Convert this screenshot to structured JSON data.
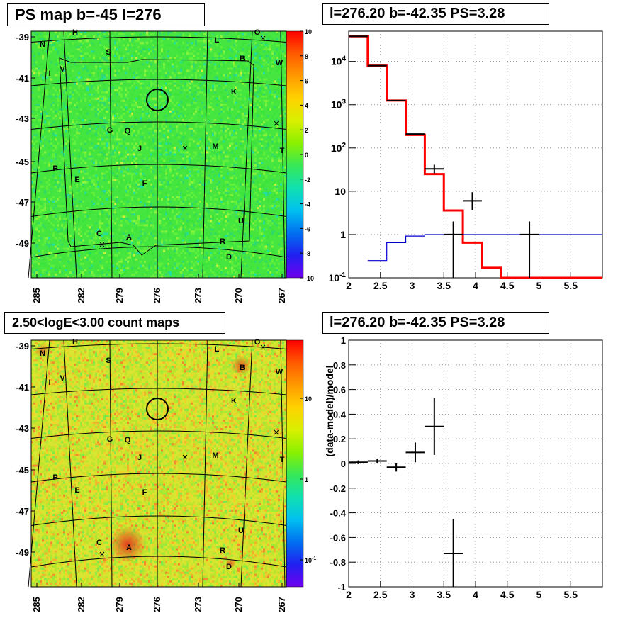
{
  "titles": {
    "map_top": "PS map b=-45 l=276",
    "spec_top": "l=276.20 b=-42.35 PS=3.28",
    "map_bottom": "2.50<logE<3.00 count maps",
    "spec_bottom": "l=276.20 b=-42.35 PS=3.28"
  },
  "chart_data": [
    {
      "type": "heatmap",
      "title": "PS map b=-45 l=276",
      "x_ticks": [
        "285",
        "282",
        "279",
        "276",
        "273",
        "270",
        "267"
      ],
      "y_ticks": [
        "-39",
        "-41",
        "-43",
        "-45",
        "-47",
        "-49"
      ],
      "colorbar": {
        "ticks": [
          "10",
          "8",
          "6",
          "4",
          "2",
          "0",
          "-2",
          "-4",
          "-6",
          "-8",
          "-10"
        ],
        "range": [
          -10,
          10
        ],
        "scale": "linear"
      },
      "sources": [
        {
          "label": "N",
          "l": 284.8,
          "b": -39.2
        },
        {
          "label": "H",
          "l": 283.0,
          "b": -38.9
        },
        {
          "label": "S",
          "l": 280.8,
          "b": -39.7
        },
        {
          "label": "L",
          "l": 271.0,
          "b": -39.0
        },
        {
          "label": "O",
          "l": 269.3,
          "b": -38.9
        },
        {
          "label": "B",
          "l": 270.0,
          "b": -39.9
        },
        {
          "label": "W",
          "l": 268.0,
          "b": -40.1
        },
        {
          "label": "I",
          "l": 284.0,
          "b": -40.6
        },
        {
          "label": "V",
          "l": 283.3,
          "b": -40.5
        },
        {
          "label": "K",
          "l": 270.3,
          "b": -41.5
        },
        {
          "label": "G",
          "l": 280.8,
          "b": -43.5
        },
        {
          "label": "Q",
          "l": 279.8,
          "b": -43.5
        },
        {
          "label": "J",
          "l": 278.2,
          "b": -44.3
        },
        {
          "label": "M",
          "l": 271.7,
          "b": -44.2
        },
        {
          "label": "T",
          "l": 267.3,
          "b": -44.4
        },
        {
          "label": "P",
          "l": 284.2,
          "b": -45.2
        },
        {
          "label": "E",
          "l": 282.5,
          "b": -45.8
        },
        {
          "label": "F",
          "l": 277.9,
          "b": -46.0
        },
        {
          "label": "U",
          "l": 269.8,
          "b": -48.0
        },
        {
          "label": "C",
          "l": 281.5,
          "b": -48.6
        },
        {
          "label": "A",
          "l": 279.6,
          "b": -48.8
        },
        {
          "label": "R",
          "l": 271.4,
          "b": -49.0
        },
        {
          "label": "D",
          "l": 270.9,
          "b": -49.6
        }
      ],
      "roi_circle": {
        "l": 276.2,
        "b": -42.35
      }
    },
    {
      "type": "line",
      "title": "l=276.20 b=-42.35 PS=3.28",
      "x_ticks": [
        "2",
        "2.5",
        "3",
        "3.5",
        "4",
        "4.5",
        "5",
        "5.5"
      ],
      "y_ticks": [
        "10^-1",
        "1",
        "10",
        "10^2",
        "10^3",
        "10^4"
      ],
      "xlim": [
        2,
        6
      ],
      "ylim": [
        0.1,
        50000
      ],
      "yscale": "log",
      "grid": true,
      "series": [
        {
          "color": "#ff0000",
          "steps": [
            [
              2.0,
              2.3,
              38000
            ],
            [
              2.3,
              2.6,
              8000
            ],
            [
              2.6,
              2.9,
              1250
            ],
            [
              2.9,
              3.2,
              200
            ],
            [
              3.2,
              3.5,
              25
            ],
            [
              3.5,
              3.8,
              3.6
            ],
            [
              3.8,
              4.1,
              0.65
            ],
            [
              4.1,
              4.4,
              0.17
            ],
            [
              4.4,
              6.0,
              0.1
            ]
          ]
        },
        {
          "color": "#0000cc",
          "steps": [
            [
              2.3,
              2.6,
              0.25
            ],
            [
              2.6,
              2.9,
              0.65
            ],
            [
              2.9,
              3.2,
              0.92
            ],
            [
              3.2,
              3.5,
              1.0
            ],
            [
              3.5,
              6.0,
              1.0
            ]
          ]
        },
        {
          "color": "#000000",
          "points": [
            {
              "x": 2.15,
              "y": 38000,
              "xerr": 0.15
            },
            {
              "x": 2.45,
              "y": 8000,
              "xerr": 0.15
            },
            {
              "x": 2.75,
              "y": 1250,
              "xerr": 0.15
            },
            {
              "x": 3.05,
              "y": 210,
              "xerr": 0.15
            },
            {
              "x": 3.35,
              "y": 33,
              "xerr": 0.15,
              "ylo": 26,
              "yhi": 41
            },
            {
              "x": 3.65,
              "y": 1,
              "xerr": 0.15,
              "ylo": 0.1,
              "yhi": 2
            },
            {
              "x": 3.95,
              "y": 6,
              "xerr": 0.15,
              "ylo": 3.6,
              "yhi": 9.5
            },
            {
              "x": 4.85,
              "y": 1,
              "xerr": 0.15,
              "ylo": 0.1,
              "yhi": 2
            }
          ]
        }
      ]
    },
    {
      "type": "heatmap",
      "title": "2.50<logE<3.00 count maps",
      "x_ticks": [
        "285",
        "282",
        "279",
        "276",
        "273",
        "270",
        "267"
      ],
      "y_ticks": [
        "-39",
        "-41",
        "-43",
        "-45",
        "-47",
        "-49"
      ],
      "colorbar": {
        "ticks": [
          "10",
          "1",
          "10^-1"
        ],
        "scale": "log"
      }
    },
    {
      "type": "scatter",
      "title": "l=276.20 b=-42.35 PS=3.28",
      "ylabel": "(data-model)/model",
      "x_ticks": [
        "2",
        "2.5",
        "3",
        "3.5",
        "4",
        "4.5",
        "5",
        "5.5"
      ],
      "y_ticks": [
        "1",
        "0.8",
        "0.6",
        "0.4",
        "0.2",
        "0",
        "-0.2",
        "-0.4",
        "-0.6",
        "-0.8",
        "-1"
      ],
      "xlim": [
        2,
        6
      ],
      "ylim": [
        -1,
        1
      ],
      "grid": true,
      "points": [
        {
          "x": 2.15,
          "y": 0.01,
          "xerr": 0.15,
          "yerr": 0.015
        },
        {
          "x": 2.45,
          "y": 0.02,
          "xerr": 0.15,
          "yerr": 0.02
        },
        {
          "x": 2.75,
          "y": -0.03,
          "xerr": 0.15,
          "yerr": 0.035
        },
        {
          "x": 3.05,
          "y": 0.09,
          "xerr": 0.15,
          "yerr": 0.08
        },
        {
          "x": 3.35,
          "y": 0.3,
          "xerr": 0.15,
          "yerr": 0.23
        },
        {
          "x": 3.65,
          "y": -0.73,
          "xerr": 0.15,
          "ylo": -1.0,
          "yhi": -0.45
        }
      ]
    }
  ]
}
